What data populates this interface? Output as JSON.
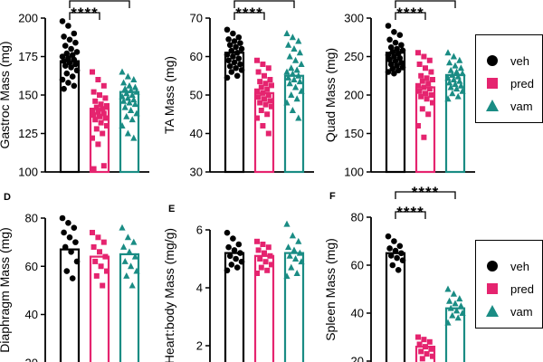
{
  "legend": {
    "entries": [
      {
        "label": "veh",
        "color": "#000000",
        "marker": "circle"
      },
      {
        "label": "pred",
        "color": "#e5246f",
        "marker": "square"
      },
      {
        "label": "vam",
        "color": "#1a8c84",
        "marker": "triangle"
      }
    ]
  },
  "chart_data": [
    {
      "panel": "",
      "type": "bar",
      "ylabel": "Gastroc Mass (mg)",
      "ylim": [
        100,
        200
      ],
      "yticks": [
        100,
        125,
        150,
        175,
        200
      ],
      "categories": [
        "veh",
        "pred",
        "vam"
      ],
      "values": [
        172,
        141,
        152
      ],
      "points": [
        [
          198,
          195,
          190,
          188,
          186,
          184,
          182,
          180,
          178,
          177,
          176,
          175,
          174,
          173,
          172,
          171,
          170,
          169,
          168,
          166,
          164,
          162,
          160,
          158,
          156,
          154
        ],
        [
          165,
          160,
          156,
          152,
          150,
          148,
          146,
          144,
          143,
          142,
          141,
          140,
          139,
          138,
          137,
          136,
          135,
          134,
          132,
          130,
          128,
          125,
          122,
          118,
          104,
          102
        ],
        [
          165,
          162,
          160,
          158,
          156,
          155,
          154,
          153,
          152,
          151,
          150,
          149,
          148,
          147,
          146,
          145,
          144,
          142,
          140,
          138,
          136,
          134,
          130,
          125,
          122
        ]
      ],
      "significance": [
        {
          "from": 0,
          "to": 1,
          "label": "****"
        },
        {
          "from": 0,
          "to": 2,
          "label": ""
        }
      ]
    },
    {
      "panel": "",
      "type": "bar",
      "ylabel": "TA Mass (mg)",
      "ylim": [
        30,
        70
      ],
      "yticks": [
        30,
        40,
        50,
        60,
        70
      ],
      "categories": [
        "veh",
        "pred",
        "vam"
      ],
      "values": [
        61,
        50.5,
        55
      ],
      "points": [
        [
          67,
          66,
          65,
          64.5,
          64,
          63.5,
          63,
          62.5,
          62,
          61.5,
          61,
          60.5,
          60,
          59.5,
          59,
          58.5,
          58,
          57.5,
          57,
          56.5,
          56,
          55,
          54.5
        ],
        [
          59,
          58,
          57,
          56,
          55,
          54,
          53.5,
          53,
          52.5,
          52,
          51.5,
          51,
          50.5,
          50,
          49.5,
          49,
          48.5,
          48,
          47.5,
          47,
          46,
          45,
          44,
          42,
          40
        ],
        [
          66,
          65,
          64,
          63,
          62,
          61,
          60,
          59,
          58,
          57,
          56.5,
          56,
          55.5,
          55,
          54.5,
          54,
          53.5,
          53,
          52,
          51,
          50,
          49,
          48,
          46,
          44
        ]
      ],
      "significance": [
        {
          "from": 0,
          "to": 1,
          "label": "****"
        },
        {
          "from": 0,
          "to": 2,
          "label": ""
        }
      ]
    },
    {
      "panel": "",
      "type": "bar",
      "ylabel": "Quad Mass (mg)",
      "ylim": [
        100,
        300
      ],
      "yticks": [
        100,
        150,
        200,
        250,
        300
      ],
      "categories": [
        "veh",
        "pred",
        "vam"
      ],
      "values": [
        255,
        210,
        226
      ],
      "points": [
        [
          290,
          282,
          278,
          272,
          268,
          265,
          262,
          260,
          258,
          256,
          254,
          252,
          250,
          248,
          246,
          244,
          242,
          240,
          238,
          236,
          234,
          232,
          230,
          228
        ],
        [
          255,
          250,
          245,
          240,
          235,
          230,
          225,
          222,
          220,
          218,
          215,
          212,
          210,
          208,
          205,
          202,
          200,
          198,
          195,
          190,
          182,
          175,
          160,
          145
        ],
        [
          255,
          250,
          245,
          242,
          238,
          235,
          232,
          230,
          228,
          226,
          224,
          222,
          220,
          218,
          216,
          214,
          212,
          210,
          208,
          205,
          202,
          198,
          195
        ]
      ],
      "significance": [
        {
          "from": 0,
          "to": 1,
          "label": "****"
        },
        {
          "from": 0,
          "to": 2,
          "label": ""
        }
      ]
    },
    {
      "panel": "D",
      "type": "bar",
      "ylabel": "Diaphragm Mass (mg)",
      "ylim": [
        0,
        80
      ],
      "yticks": [
        20,
        40,
        60,
        80
      ],
      "categories": [
        "veh",
        "pred",
        "vam"
      ],
      "values": [
        67,
        64,
        65
      ],
      "points": [
        [
          80,
          78,
          76,
          74,
          72,
          70,
          68,
          66,
          62,
          58,
          55
        ],
        [
          74,
          72,
          70,
          68,
          66,
          64,
          62,
          60,
          58,
          56,
          52
        ],
        [
          76,
          72,
          70,
          68,
          66,
          64,
          62,
          60,
          58,
          56,
          52
        ]
      ],
      "significance": []
    },
    {
      "panel": "E",
      "type": "bar",
      "ylabel": "Heart:body Mass (mg/g)",
      "ylim": [
        0,
        6
      ],
      "yticks": [
        2,
        4,
        6
      ],
      "categories": [
        "veh",
        "pred",
        "vam"
      ],
      "values": [
        5.2,
        5.1,
        5.2
      ],
      "points": [
        [
          5.9,
          5.7,
          5.5,
          5.4,
          5.3,
          5.2,
          5.1,
          5.0,
          4.9,
          4.8,
          4.7,
          4.6
        ],
        [
          5.6,
          5.5,
          5.4,
          5.3,
          5.2,
          5.1,
          5.0,
          4.9,
          4.8,
          4.7,
          4.6,
          4.5
        ],
        [
          6.2,
          5.8,
          5.6,
          5.4,
          5.3,
          5.2,
          5.1,
          5.0,
          4.9,
          4.7,
          4.5,
          4.4
        ]
      ],
      "significance": []
    },
    {
      "panel": "F",
      "type": "bar",
      "ylabel": "Spleen Mass (mg)",
      "ylim": [
        0,
        80
      ],
      "yticks": [
        20,
        40,
        60,
        80
      ],
      "categories": [
        "veh",
        "pred",
        "vam"
      ],
      "values": [
        65,
        26,
        42
      ],
      "points": [
        [
          72,
          70,
          68,
          67,
          66,
          65,
          64,
          63,
          62,
          60,
          58
        ],
        [
          30,
          29,
          28,
          27,
          26,
          25,
          24,
          23,
          22,
          21
        ],
        [
          50,
          48,
          46,
          45,
          44,
          43,
          42,
          41,
          40,
          39,
          38,
          36
        ]
      ],
      "significance": [
        {
          "from": 0,
          "to": 1,
          "label": "****"
        },
        {
          "from": 0,
          "to": 2,
          "label": "****"
        }
      ]
    }
  ]
}
